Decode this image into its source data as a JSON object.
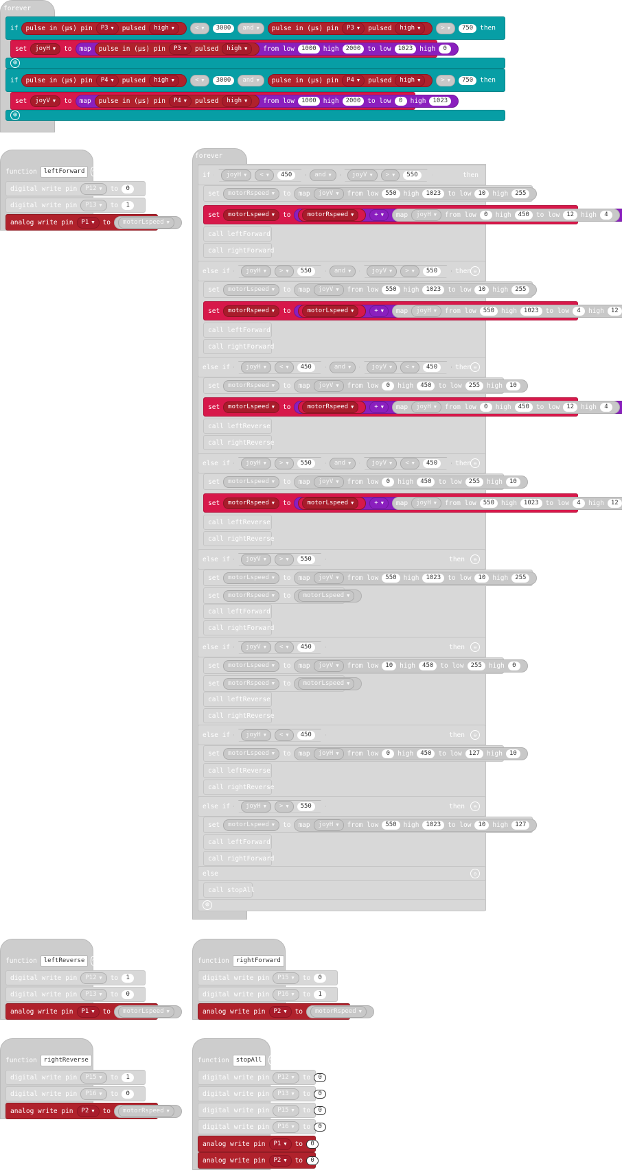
{
  "common": {
    "forever": "forever",
    "if": "if",
    "else_if": "else if",
    "else": "else",
    "then": "then",
    "set": "set",
    "to": "to",
    "map": "map",
    "from_low": "from low",
    "high": "high",
    "to_low": "to low",
    "and": "and",
    "function": "function",
    "call": "call",
    "digital_write_pin": "digital write pin",
    "analog_write_pin": "analog write pin",
    "pulse_in_pin": "pulse in (µs) pin",
    "pulsed": "pulsed",
    "lt": "<",
    "gt": ">",
    "plus": "+"
  },
  "pins": {
    "p1": "P1",
    "p2": "P2",
    "p3": "P3",
    "p4": "P4",
    "p12": "P12",
    "p13": "P13",
    "p15": "P15",
    "p16": "P16"
  },
  "vars": {
    "joyH": "joyH",
    "joyV": "joyV",
    "motorRspeed": "motorRspeed",
    "motorLspeed": "motorLspeed"
  },
  "nums": {
    "n0": "0",
    "n1": "1",
    "n4": "4",
    "n10": "10",
    "n12": "12",
    "n127": "127",
    "n255": "255",
    "n450": "450",
    "n550": "550",
    "n750": "750",
    "n1000": "1000",
    "n1023": "1023",
    "n2000": "2000",
    "n3000": "3000"
  },
  "funcs": {
    "leftForward": "leftForward",
    "rightForward": "rightForward",
    "leftReverse": "leftReverse",
    "rightReverse": "rightReverse",
    "stopAll": "stopAll"
  },
  "colors": {
    "control": "#079ea5",
    "variables": "#d7184a",
    "pins": "#b0222c",
    "math": "#8a1fbe",
    "disabled": "#cdcdcd"
  },
  "icons": {
    "collapse": "⊖",
    "expand": "⊕",
    "caret": "▼",
    "up": "⌃"
  }
}
